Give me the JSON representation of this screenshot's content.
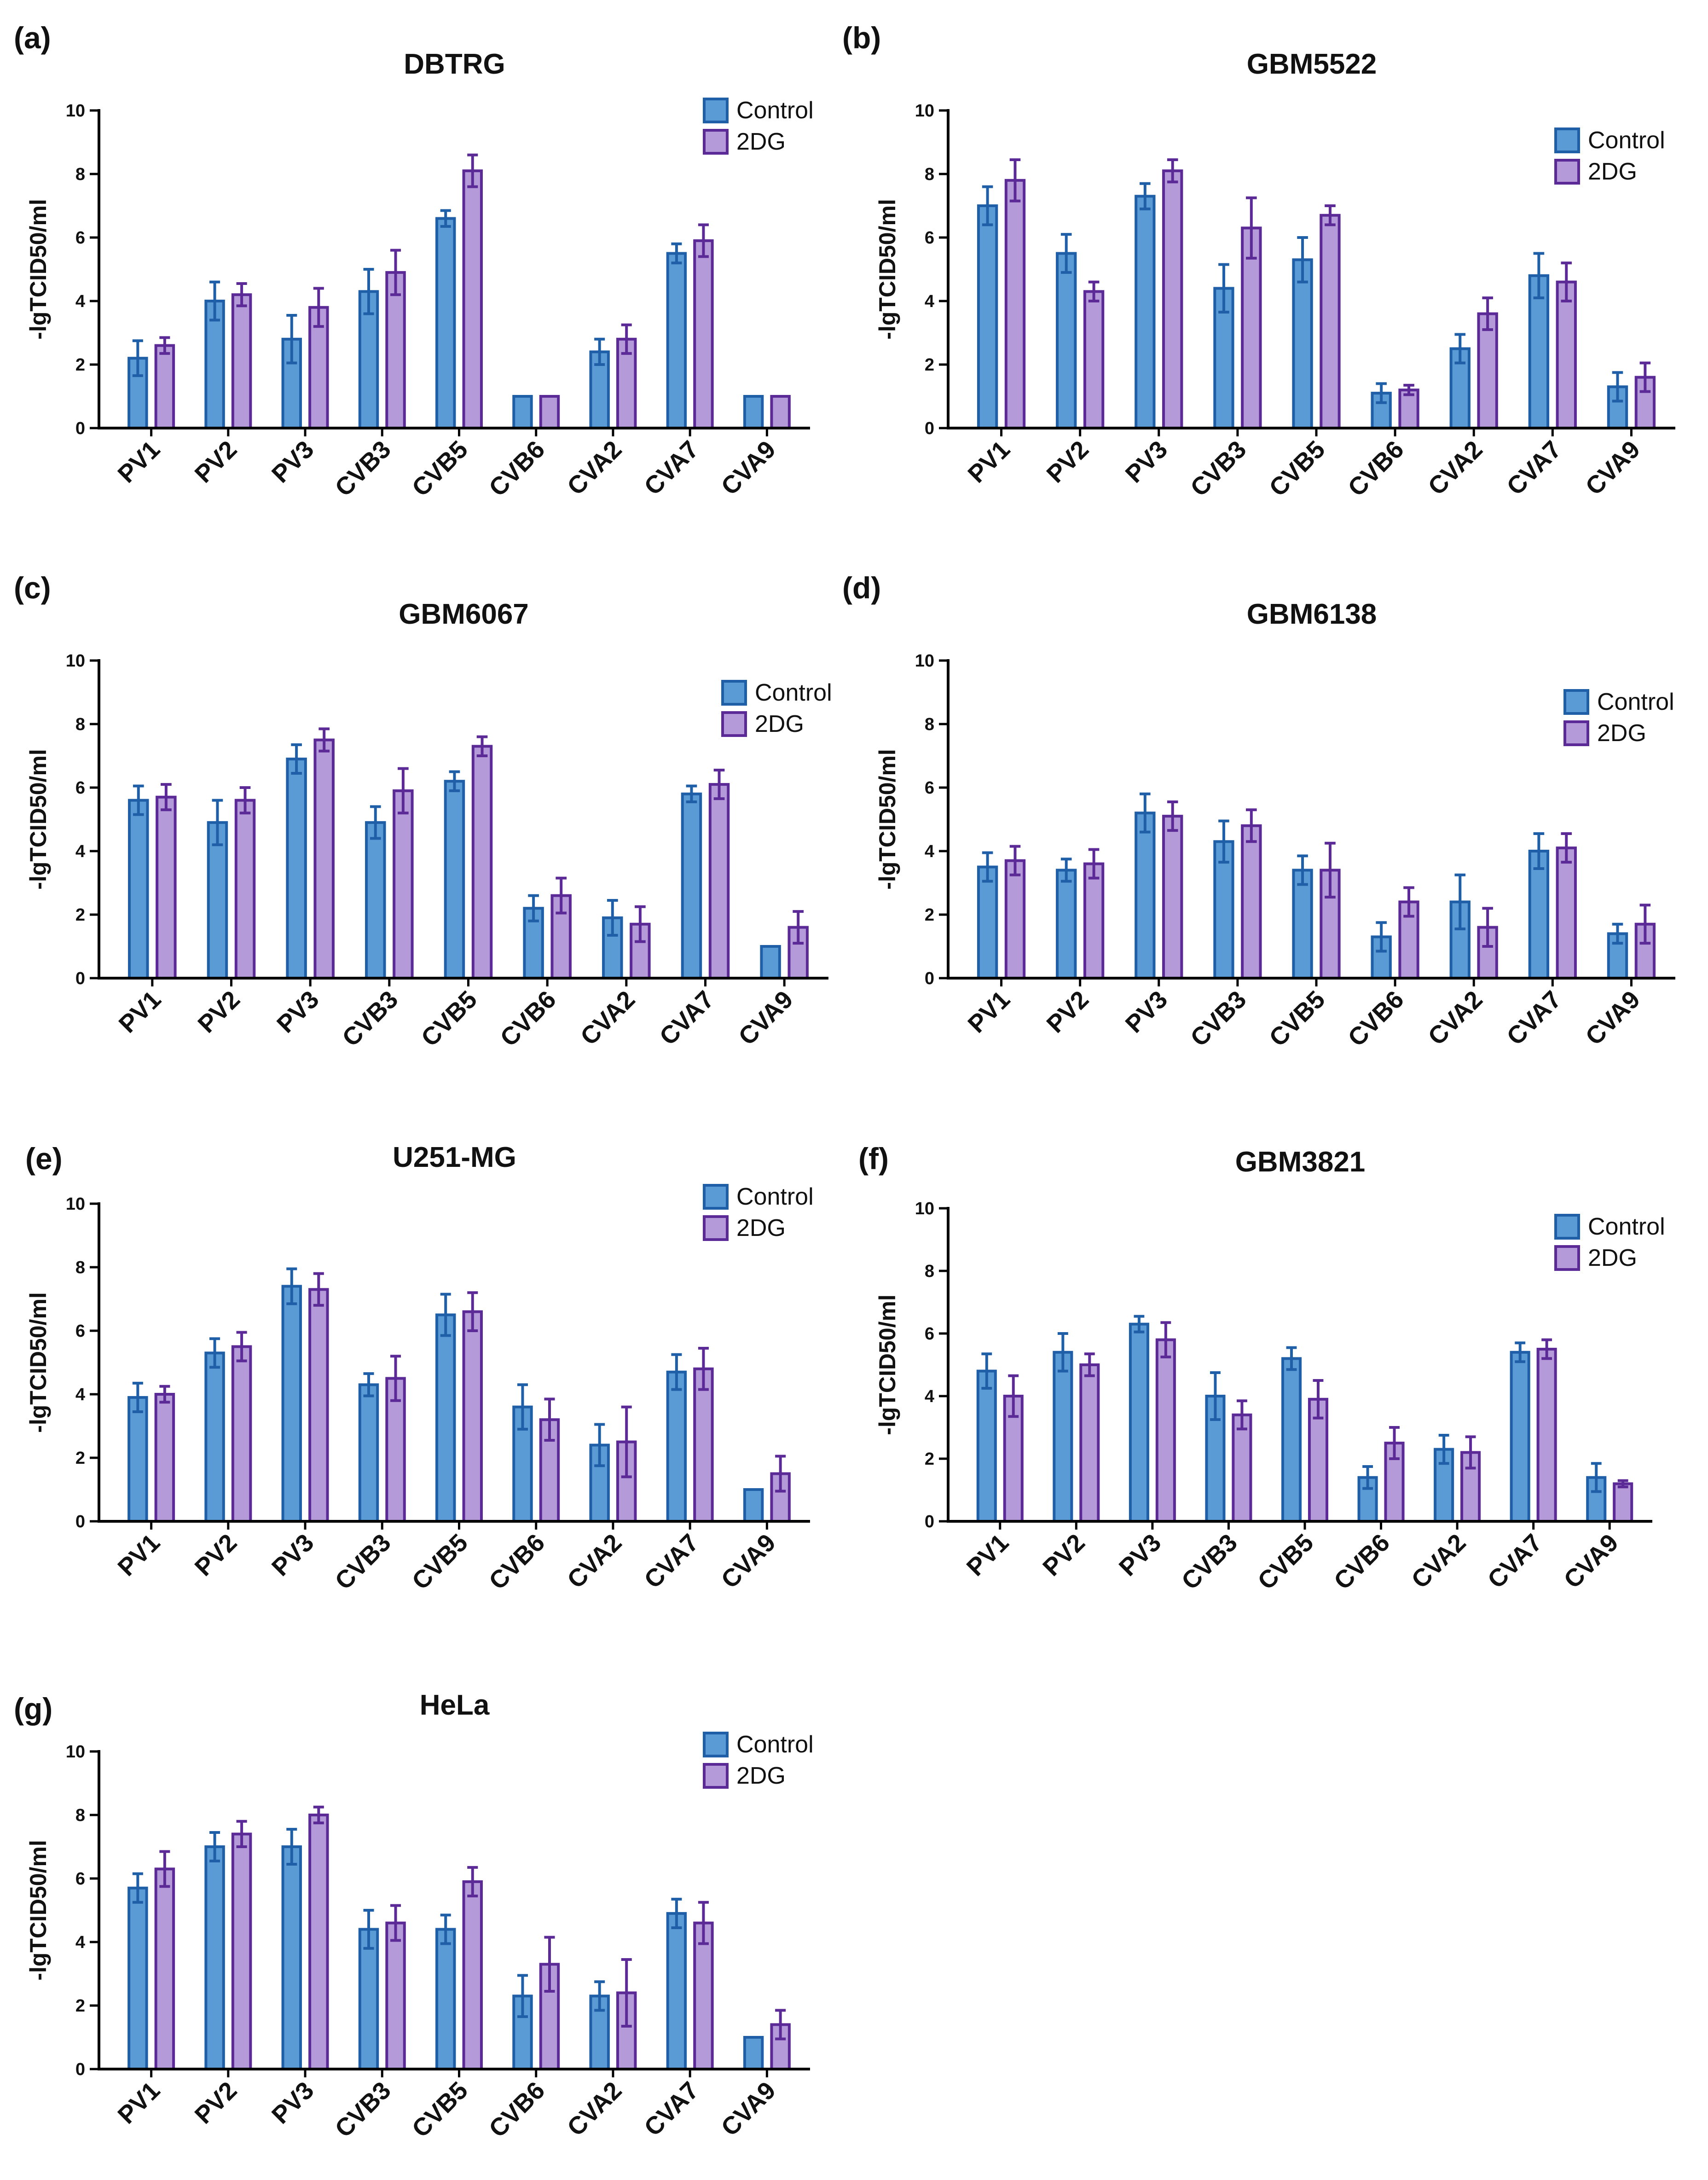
{
  "figure": {
    "colors": {
      "control_fill": "#5b9bd5",
      "control_stroke": "#1f5fa8",
      "treated_fill": "#b49ad9",
      "treated_stroke": "#5b2a96"
    }
  },
  "chart_data": [
    {
      "panel": "(a)",
      "type": "bar",
      "title": "DBTRG",
      "ylabel": "-lgTCID50/ml",
      "xlabel": "",
      "ylim": [
        0,
        10
      ],
      "yticks": [
        "0",
        "2",
        "4",
        "6",
        "8",
        "10"
      ],
      "legend": "top-right",
      "categories": [
        "PV1",
        "PV2",
        "PV3",
        "CVB3",
        "CVB5",
        "CVB6",
        "CVA2",
        "CVA7",
        "CVA9"
      ],
      "series": [
        {
          "name": "Control",
          "values": [
            2.2,
            4.0,
            2.8,
            4.3,
            6.6,
            1.0,
            2.4,
            5.5,
            1.0
          ],
          "errors": [
            0.55,
            0.6,
            0.75,
            0.7,
            0.25,
            0,
            0.4,
            0.3,
            0
          ]
        },
        {
          "name": "2DG",
          "values": [
            2.6,
            4.2,
            3.8,
            4.9,
            8.1,
            1.0,
            2.8,
            5.9,
            1.0
          ],
          "errors": [
            0.25,
            0.35,
            0.6,
            0.7,
            0.5,
            0,
            0.45,
            0.5,
            0
          ]
        }
      ]
    },
    {
      "panel": "(b)",
      "type": "bar",
      "title": "GBM5522",
      "ylabel": "-lgTCID50/ml",
      "xlabel": "",
      "ylim": [
        0,
        10
      ],
      "yticks": [
        "0",
        "2",
        "4",
        "6",
        "8",
        "10"
      ],
      "legend": "top-right",
      "categories": [
        "PV1",
        "PV2",
        "PV3",
        "CVB3",
        "CVB5",
        "CVB6",
        "CVA2",
        "CVA7",
        "CVA9"
      ],
      "series": [
        {
          "name": "Control",
          "values": [
            7.0,
            5.5,
            7.3,
            4.4,
            5.3,
            1.1,
            2.5,
            4.8,
            1.3
          ],
          "errors": [
            0.6,
            0.6,
            0.4,
            0.75,
            0.7,
            0.3,
            0.45,
            0.7,
            0.45
          ]
        },
        {
          "name": "2DG",
          "values": [
            7.8,
            4.3,
            8.1,
            6.3,
            6.7,
            1.2,
            3.6,
            4.6,
            1.6
          ],
          "errors": [
            0.65,
            0.3,
            0.35,
            0.95,
            0.3,
            0.15,
            0.5,
            0.6,
            0.45
          ]
        }
      ]
    },
    {
      "panel": "(c)",
      "type": "bar",
      "title": "GBM6067",
      "ylabel": "-lgTCID50/ml",
      "xlabel": "",
      "ylim": [
        0,
        10
      ],
      "yticks": [
        "0",
        "2",
        "4",
        "6",
        "8",
        "10"
      ],
      "legend": "top-right",
      "categories": [
        "PV1",
        "PV2",
        "PV3",
        "CVB3",
        "CVB5",
        "CVB6",
        "CVA2",
        "CVA7",
        "CVA9"
      ],
      "series": [
        {
          "name": "Control",
          "values": [
            5.6,
            4.9,
            6.9,
            4.9,
            6.2,
            2.2,
            1.9,
            5.8,
            1.0
          ],
          "errors": [
            0.45,
            0.7,
            0.45,
            0.5,
            0.3,
            0.4,
            0.55,
            0.25,
            0
          ]
        },
        {
          "name": "2DG",
          "values": [
            5.7,
            5.6,
            7.5,
            5.9,
            7.3,
            2.6,
            1.7,
            6.1,
            1.6
          ],
          "errors": [
            0.4,
            0.4,
            0.35,
            0.7,
            0.3,
            0.55,
            0.55,
            0.45,
            0.5
          ]
        }
      ]
    },
    {
      "panel": "(d)",
      "type": "bar",
      "title": "GBM6138",
      "ylabel": "-lgTCID50/ml",
      "xlabel": "",
      "ylim": [
        0,
        10
      ],
      "yticks": [
        "0",
        "2",
        "4",
        "6",
        "8",
        "10"
      ],
      "legend": "top-right",
      "categories": [
        "PV1",
        "PV2",
        "PV3",
        "CVB3",
        "CVB5",
        "CVB6",
        "CVA2",
        "CVA7",
        "CVA9"
      ],
      "series": [
        {
          "name": "Control",
          "values": [
            3.5,
            3.4,
            5.2,
            4.3,
            3.4,
            1.3,
            2.4,
            4.0,
            1.4
          ],
          "errors": [
            0.45,
            0.35,
            0.6,
            0.65,
            0.45,
            0.45,
            0.85,
            0.55,
            0.3
          ]
        },
        {
          "name": "2DG",
          "values": [
            3.7,
            3.6,
            5.1,
            4.8,
            3.4,
            2.4,
            1.6,
            4.1,
            1.7
          ],
          "errors": [
            0.45,
            0.45,
            0.45,
            0.5,
            0.85,
            0.45,
            0.6,
            0.45,
            0.6
          ]
        }
      ]
    },
    {
      "panel": "(e)",
      "type": "bar",
      "title": "U251-MG",
      "ylabel": "-lgTCID50/ml",
      "xlabel": "",
      "ylim": [
        0,
        10
      ],
      "yticks": [
        "0",
        "2",
        "4",
        "6",
        "8",
        "10"
      ],
      "legend": "top-right",
      "categories": [
        "PV1",
        "PV2",
        "PV3",
        "CVB3",
        "CVB5",
        "CVB6",
        "CVA2",
        "CVA7",
        "CVA9"
      ],
      "series": [
        {
          "name": "Control",
          "values": [
            3.9,
            5.3,
            7.4,
            4.3,
            6.5,
            3.6,
            2.4,
            4.7,
            1.0
          ],
          "errors": [
            0.45,
            0.45,
            0.55,
            0.35,
            0.65,
            0.7,
            0.65,
            0.55,
            0
          ]
        },
        {
          "name": "2DG",
          "values": [
            4.0,
            5.5,
            7.3,
            4.5,
            6.6,
            3.2,
            2.5,
            4.8,
            1.5
          ],
          "errors": [
            0.25,
            0.45,
            0.5,
            0.7,
            0.6,
            0.65,
            1.1,
            0.65,
            0.55
          ]
        }
      ]
    },
    {
      "panel": "(f)",
      "type": "bar",
      "title": "GBM3821",
      "ylabel": "-lgTCID50/ml",
      "xlabel": "",
      "ylim": [
        0,
        10
      ],
      "yticks": [
        "0",
        "2",
        "4",
        "6",
        "8",
        "10"
      ],
      "legend": "top-right",
      "categories": [
        "PV1",
        "PV2",
        "PV3",
        "CVB3",
        "CVB5",
        "CVB6",
        "CVA2",
        "CVA7",
        "CVA9"
      ],
      "series": [
        {
          "name": "Control",
          "values": [
            4.8,
            5.4,
            6.3,
            4.0,
            5.2,
            1.4,
            2.3,
            5.4,
            1.4
          ],
          "errors": [
            0.55,
            0.6,
            0.25,
            0.75,
            0.35,
            0.35,
            0.45,
            0.3,
            0.45
          ]
        },
        {
          "name": "2DG",
          "values": [
            4.0,
            5.0,
            5.8,
            3.4,
            3.9,
            2.5,
            2.2,
            5.5,
            1.2
          ],
          "errors": [
            0.65,
            0.35,
            0.55,
            0.45,
            0.6,
            0.5,
            0.5,
            0.3,
            0.1
          ]
        }
      ]
    },
    {
      "panel": "(g)",
      "type": "bar",
      "title": "HeLa",
      "ylabel": "-lgTCID50/ml",
      "xlabel": "",
      "ylim": [
        0,
        10
      ],
      "yticks": [
        "0",
        "2",
        "4",
        "6",
        "8",
        "10"
      ],
      "legend": "top-right",
      "categories": [
        "PV1",
        "PV2",
        "PV3",
        "CVB3",
        "CVB5",
        "CVB6",
        "CVA2",
        "CVA7",
        "CVA9"
      ],
      "series": [
        {
          "name": "Control",
          "values": [
            5.7,
            7.0,
            7.0,
            4.4,
            4.4,
            2.3,
            2.3,
            4.9,
            1.0
          ],
          "errors": [
            0.45,
            0.45,
            0.55,
            0.6,
            0.45,
            0.65,
            0.45,
            0.45,
            0
          ]
        },
        {
          "name": "2DG",
          "values": [
            6.3,
            7.4,
            8.0,
            4.6,
            5.9,
            3.3,
            2.4,
            4.6,
            1.4
          ],
          "errors": [
            0.55,
            0.4,
            0.25,
            0.55,
            0.45,
            0.85,
            1.05,
            0.65,
            0.45
          ]
        }
      ]
    }
  ]
}
